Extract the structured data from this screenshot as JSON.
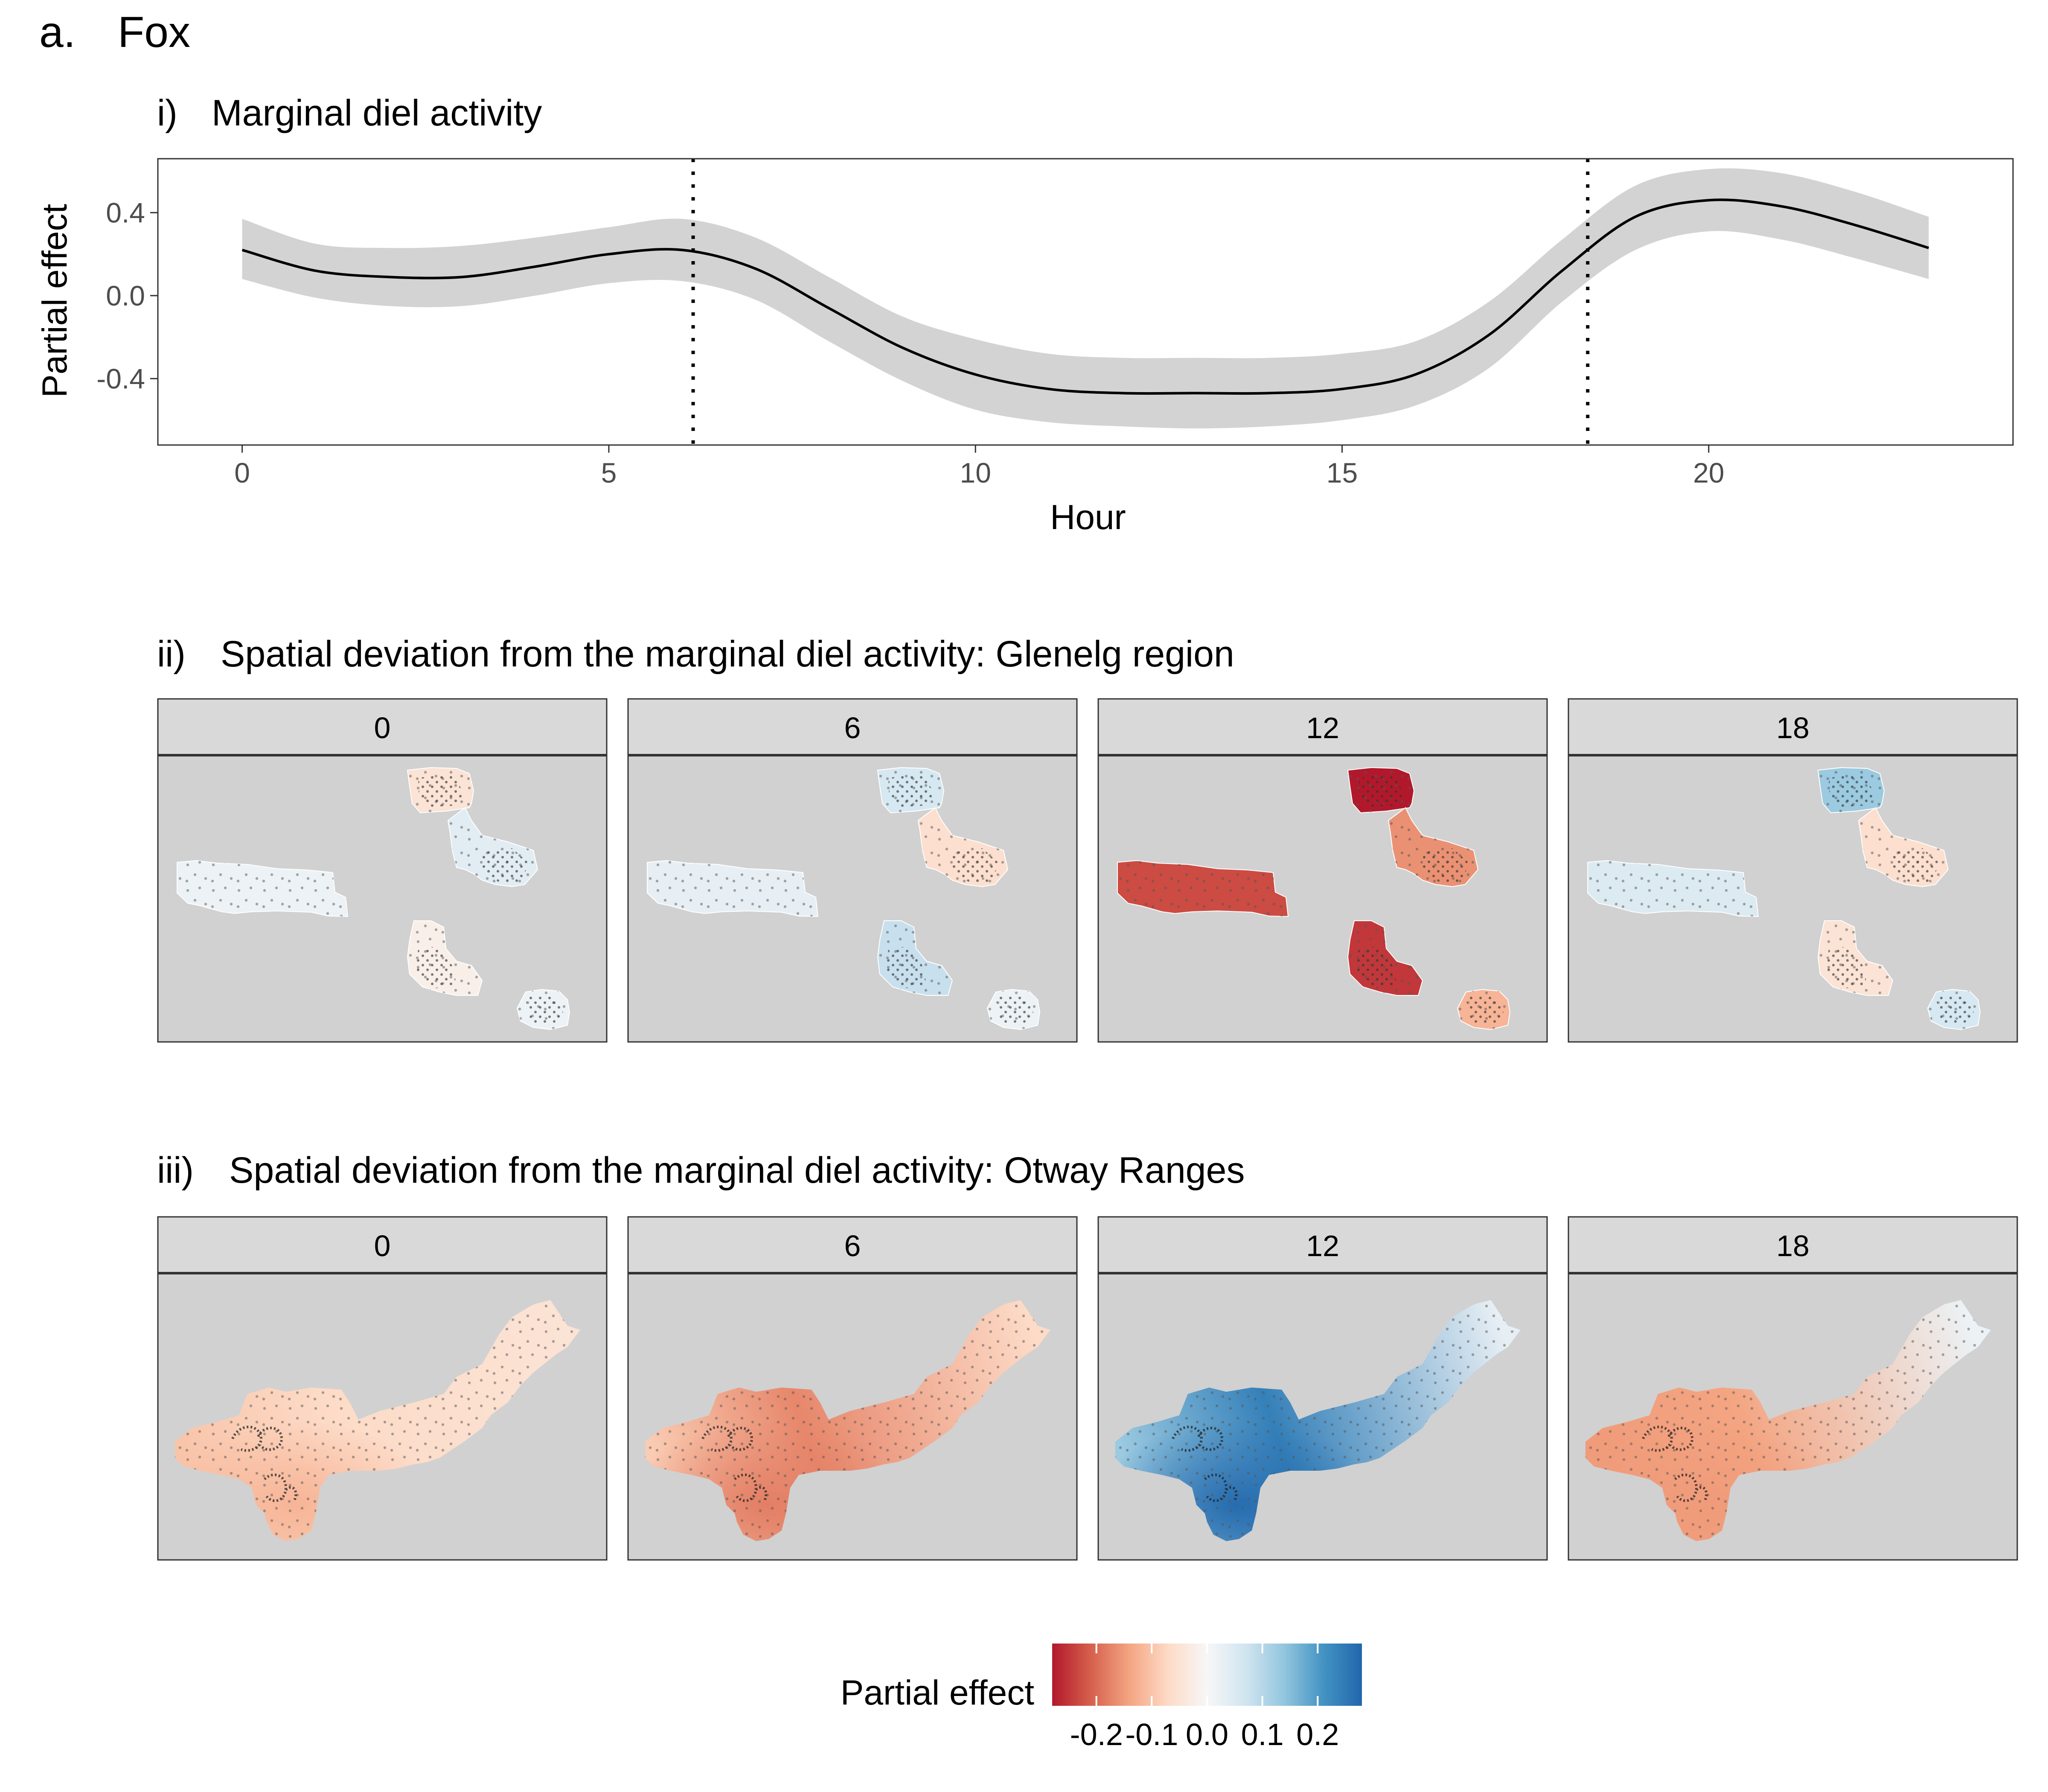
{
  "figure": {
    "panel_label": "a.",
    "species": "Fox"
  },
  "legend": {
    "title": "Partial effect",
    "ticks": [
      "-0.2",
      "-0.1",
      "0.0",
      "0.1",
      "0.2"
    ],
    "tick_values": [
      -0.2,
      -0.1,
      0.0,
      0.1,
      0.2
    ],
    "range": [
      -0.28,
      0.28
    ],
    "colors": [
      "#b2182b",
      "#d6604d",
      "#f4a582",
      "#fddbc7",
      "#f7f7f7",
      "#d1e5f0",
      "#92c5de",
      "#4393c3",
      "#2166ac"
    ]
  },
  "chart_data": [
    {
      "type": "line",
      "roman": "i)",
      "title": "Marginal diel activity",
      "xlabel": "Hour",
      "ylabel": "Partial effect",
      "xlim": [
        -1.15,
        24.15
      ],
      "ylim": [
        -0.72,
        0.66
      ],
      "x_ticks": [
        0,
        5,
        10,
        15,
        20
      ],
      "x_tick_labels": [
        "0",
        "5",
        "10",
        "15",
        "20"
      ],
      "y_ticks": [
        0.4,
        0.0,
        -0.4
      ],
      "y_tick_labels": [
        "0.4",
        "0.0",
        "-0.4"
      ],
      "grid": false,
      "vlines": [
        6.15,
        18.35
      ],
      "series": [
        {
          "x": [
            0,
            1,
            2,
            3,
            4,
            5,
            6,
            7,
            8,
            9,
            10,
            11,
            12,
            13,
            14,
            15,
            16,
            17,
            18,
            19,
            20,
            21,
            22,
            23
          ],
          "values": [
            0.22,
            0.12,
            0.09,
            0.09,
            0.14,
            0.2,
            0.22,
            0.13,
            -0.06,
            -0.25,
            -0.38,
            -0.45,
            -0.47,
            -0.47,
            -0.47,
            -0.45,
            -0.38,
            -0.19,
            0.12,
            0.38,
            0.46,
            0.43,
            0.34,
            0.23
          ],
          "lower": [
            0.08,
            -0.01,
            -0.05,
            -0.05,
            0.0,
            0.06,
            0.07,
            -0.02,
            -0.22,
            -0.41,
            -0.55,
            -0.61,
            -0.63,
            -0.64,
            -0.63,
            -0.6,
            -0.53,
            -0.35,
            -0.03,
            0.22,
            0.31,
            0.27,
            0.18,
            0.08
          ],
          "upper": [
            0.37,
            0.25,
            0.23,
            0.24,
            0.28,
            0.33,
            0.37,
            0.28,
            0.09,
            -0.1,
            -0.21,
            -0.28,
            -0.3,
            -0.3,
            -0.3,
            -0.28,
            -0.22,
            -0.03,
            0.27,
            0.53,
            0.61,
            0.59,
            0.5,
            0.38
          ]
        }
      ]
    },
    {
      "type": "heatmap",
      "roman": "ii)",
      "title": "Spatial deviation from the marginal diel activity: Glenelg region",
      "facets": [
        {
          "label": "0",
          "patch_values": [
            0.02,
            -0.05,
            0.04,
            -0.02,
            0.03,
            0.02
          ]
        },
        {
          "label": "6",
          "patch_values": [
            0.03,
            0.06,
            -0.06,
            0.08,
            0.03,
            0.02
          ]
        },
        {
          "label": "12",
          "patch_values": [
            -0.23,
            -0.28,
            -0.16,
            -0.25,
            -0.27,
            -0.12
          ]
        },
        {
          "label": "18",
          "patch_values": [
            0.05,
            0.13,
            -0.06,
            -0.05,
            0.02,
            0.06
          ]
        }
      ]
    },
    {
      "type": "heatmap",
      "roman": "iii)",
      "title": "Spatial deviation from the marginal diel activity: Otway Ranges",
      "facets": [
        {
          "label": "0",
          "west_value": -0.1,
          "center_value": -0.07,
          "east_value": -0.05,
          "south_value": -0.12
        },
        {
          "label": "6",
          "west_value": -0.09,
          "center_value": -0.17,
          "east_value": -0.07,
          "south_value": -0.18
        },
        {
          "label": "12",
          "west_value": 0.13,
          "center_value": 0.24,
          "east_value": 0.03,
          "south_value": 0.27
        },
        {
          "label": "18",
          "west_value": -0.15,
          "center_value": -0.14,
          "east_value": 0.02,
          "south_value": -0.15
        }
      ]
    }
  ]
}
